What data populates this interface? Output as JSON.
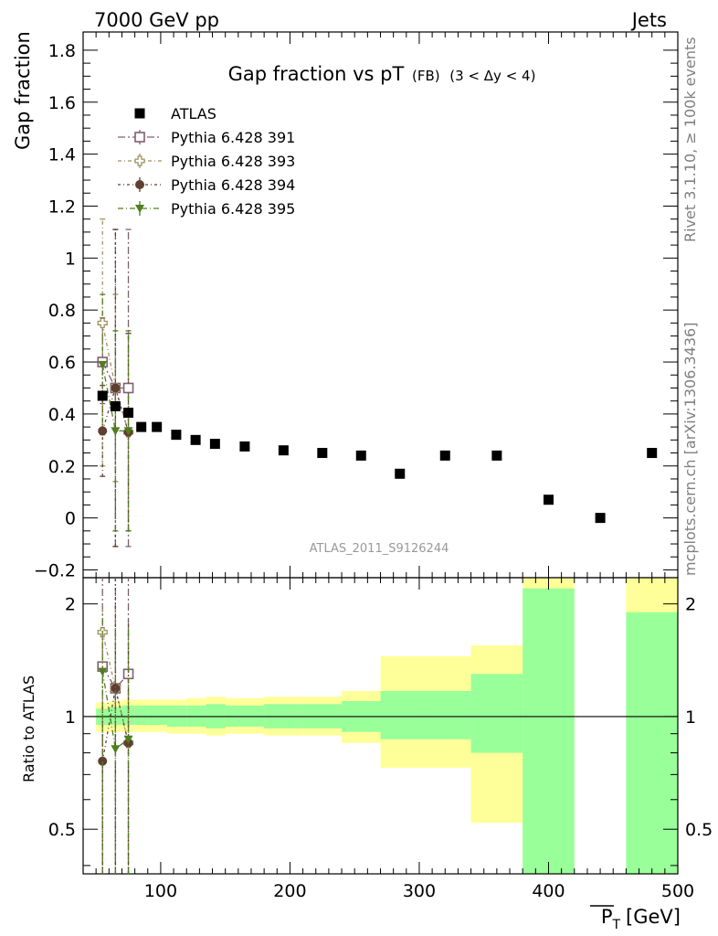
{
  "header": {
    "left": "7000 GeV pp",
    "right": "Jets"
  },
  "side_labels": {
    "top": "Rivet 3.1.10, ≥ 100k events",
    "bottom": "mcplots.cern.ch [arXiv:1306.3436]"
  },
  "colors": {
    "data": "#000000",
    "p391": "#7f5f6f",
    "p393": "#9f8f5f",
    "p394": "#5f3f2f",
    "p395": "#4f7f1f",
    "band_inner": "#99ff99",
    "band_outer": "#ffff99"
  },
  "chart_data": [
    {
      "type": "scatter",
      "title": "Gap fraction vs pT",
      "title_sub": "(FB)",
      "title_range": "(3 < Δy < 4)",
      "ylabel": "Gap fraction",
      "xlim": [
        40,
        500
      ],
      "ylim": [
        -0.23,
        1.87
      ],
      "y_ticks": [
        -0.2,
        0,
        0.2,
        0.4,
        0.6,
        0.8,
        1,
        1.2,
        1.4,
        1.6,
        1.8
      ],
      "y_tick_labels": [
        "−0.2",
        "0",
        "0.2",
        "0.4",
        "0.6",
        "0.8",
        "1",
        "1.2",
        "1.4",
        "1.6",
        "1.8"
      ],
      "watermark": "ATLAS_2011_S9126244",
      "legend_position": "top-left",
      "series": [
        {
          "name": "ATLAS",
          "marker": "filled-square",
          "x": [
            55,
            65,
            75,
            85,
            97,
            112,
            127,
            142,
            165,
            195,
            225,
            255,
            285,
            320,
            360,
            400,
            440,
            480
          ],
          "y": [
            0.47,
            0.43,
            0.405,
            0.35,
            0.35,
            0.32,
            0.3,
            0.285,
            0.275,
            0.26,
            0.25,
            0.24,
            0.17,
            0.24,
            0.24,
            0.07,
            0.0,
            0.25
          ]
        },
        {
          "name": "Pythia 6.428 391",
          "marker": "open-square",
          "x": [
            55,
            65,
            75
          ],
          "y": [
            0.6,
            0.5,
            0.5
          ],
          "err_low": [
            0.44,
            -0.11,
            -0.11
          ],
          "err_high": [
            0.77,
            1.11,
            1.11
          ]
        },
        {
          "name": "Pythia 6.428 393",
          "marker": "open-cross",
          "x": [
            55,
            65,
            75
          ],
          "y": [
            0.75,
            0.5,
            0.33
          ],
          "err_low": [
            0.2,
            0.14,
            -0.05
          ],
          "err_high": [
            1.15,
            0.86,
            0.71
          ]
        },
        {
          "name": "Pythia 6.428 394",
          "marker": "filled-circle",
          "x": [
            55,
            65,
            75
          ],
          "y": [
            0.335,
            0.5,
            0.33
          ],
          "err_low": [
            0.16,
            -0.11,
            -0.05
          ],
          "err_high": [
            0.51,
            1.11,
            0.71
          ]
        },
        {
          "name": "Pythia 6.428 395",
          "marker": "filled-triangle-down",
          "x": [
            55,
            65,
            75
          ],
          "y": [
            0.59,
            0.335,
            0.335
          ],
          "err_low": [
            0.32,
            -0.05,
            -0.05
          ],
          "err_high": [
            0.86,
            0.72,
            0.72
          ]
        }
      ]
    },
    {
      "type": "scatter",
      "ylabel": "Ratio to ATLAS",
      "xlabel": "P",
      "xlabel_sub": "T",
      "xlabel_unit": "[GeV]",
      "xlim": [
        40,
        500
      ],
      "x_ticks": [
        100,
        200,
        300,
        400,
        500
      ],
      "x_tick_labels": [
        "100",
        "200",
        "300",
        "400",
        "500"
      ],
      "ylim": [
        0.38,
        2.35
      ],
      "y_ticks": [
        0.5,
        1,
        2
      ],
      "y_tick_labels": [
        "0.5",
        "1",
        "2"
      ],
      "reference_line": 1,
      "bands": {
        "x_edges": [
          50,
          60,
          70,
          80,
          90,
          105,
          120,
          135,
          150,
          180,
          210,
          240,
          270,
          300,
          340,
          380,
          420,
          460,
          500
        ],
        "inner": [
          [
            0.95,
            1.05
          ],
          [
            0.95,
            1.06
          ],
          [
            0.95,
            1.07
          ],
          [
            0.95,
            1.07
          ],
          [
            0.95,
            1.07
          ],
          [
            0.94,
            1.07
          ],
          [
            0.94,
            1.07
          ],
          [
            0.93,
            1.08
          ],
          [
            0.94,
            1.07
          ],
          [
            0.93,
            1.08
          ],
          [
            0.93,
            1.08
          ],
          [
            0.91,
            1.1
          ],
          [
            0.87,
            1.17
          ],
          [
            0.87,
            1.17
          ],
          [
            0.8,
            1.3
          ],
          [
            0.0,
            2.2
          ],
          null,
          [
            0.0,
            1.9
          ]
        ],
        "outer": [
          [
            0.91,
            1.09
          ],
          [
            0.91,
            1.1
          ],
          [
            0.91,
            1.11
          ],
          [
            0.91,
            1.11
          ],
          [
            0.91,
            1.11
          ],
          [
            0.9,
            1.11
          ],
          [
            0.9,
            1.12
          ],
          [
            0.89,
            1.13
          ],
          [
            0.9,
            1.12
          ],
          [
            0.89,
            1.13
          ],
          [
            0.89,
            1.13
          ],
          [
            0.85,
            1.17
          ],
          [
            0.73,
            1.45
          ],
          [
            0.73,
            1.45
          ],
          [
            0.52,
            1.55
          ],
          [
            0.0,
            3.0
          ],
          null,
          [
            0.0,
            3.0
          ]
        ]
      },
      "series": [
        {
          "name": "Pythia 6.428 391",
          "x": [
            55,
            65,
            75
          ],
          "y": [
            1.36,
            1.19,
            1.3
          ],
          "err_low": [
            0.0,
            0.0,
            0.0
          ],
          "err_high": [
            3.0,
            3.0,
            3.0
          ]
        },
        {
          "name": "Pythia 6.428 393",
          "x": [
            55,
            65,
            75
          ],
          "y": [
            1.68,
            1.19,
            0.85
          ],
          "err_low": [
            0.0,
            0.0,
            0.0
          ],
          "err_high": [
            2.0,
            2.0,
            1.8
          ]
        },
        {
          "name": "Pythia 6.428 394",
          "x": [
            55,
            65,
            75
          ],
          "y": [
            0.76,
            1.19,
            0.85
          ],
          "err_low": [
            0.0,
            0.0,
            0.0
          ],
          "err_high": [
            1.1,
            3.0,
            1.8
          ]
        },
        {
          "name": "Pythia 6.428 395",
          "x": [
            55,
            65,
            75
          ],
          "y": [
            1.32,
            0.82,
            0.87
          ],
          "err_low": [
            0.0,
            0.0,
            0.0
          ],
          "err_high": [
            1.85,
            1.7,
            1.75
          ]
        }
      ]
    }
  ]
}
